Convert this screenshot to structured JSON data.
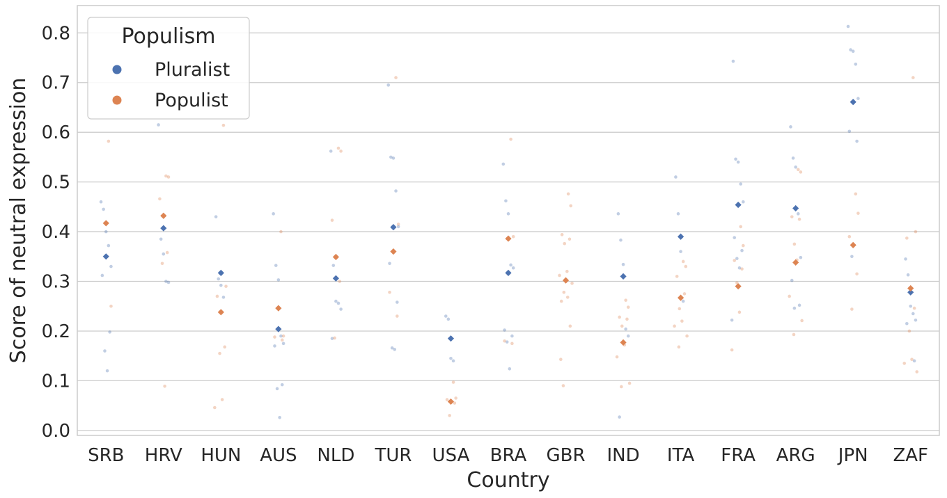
{
  "chart_data": {
    "type": "scatter",
    "subtype": "strip-with-means",
    "xlabel": "Country",
    "ylabel": "Score of neutral expression",
    "categories": [
      "SRB",
      "HRV",
      "HUN",
      "AUS",
      "NLD",
      "TUR",
      "USA",
      "BRA",
      "GBR",
      "IND",
      "ITA",
      "FRA",
      "ARG",
      "JPN",
      "ZAF"
    ],
    "ylim": [
      -0.01,
      0.855
    ],
    "yticks": [
      0.0,
      0.1,
      0.2,
      0.3,
      0.4,
      0.5,
      0.6,
      0.7,
      0.8
    ],
    "ytick_labels": [
      "0.0",
      "0.1",
      "0.2",
      "0.3",
      "0.4",
      "0.5",
      "0.6",
      "0.7",
      "0.8"
    ],
    "grid": "horizontal",
    "legend": {
      "title": "Populism",
      "placement": "top-left"
    },
    "series": [
      {
        "name": "Pluralist",
        "color": "#4c72b0",
        "means": [
          0.35,
          0.407,
          0.317,
          0.204,
          0.306,
          0.409,
          0.185,
          0.317,
          null,
          0.31,
          0.39,
          0.454,
          0.447,
          0.661,
          0.278
        ],
        "points": [
          [
            0.46,
            0.445,
            0.4,
            0.372,
            0.33,
            0.312,
            0.198,
            0.16,
            0.12
          ],
          [
            0.615,
            0.385,
            0.355,
            0.3,
            0.298
          ],
          [
            0.43,
            0.305,
            0.292,
            0.268
          ],
          [
            0.436,
            0.332,
            0.303,
            0.19,
            0.175,
            0.17,
            0.092,
            0.084,
            0.026
          ],
          [
            0.562,
            0.332,
            0.26,
            0.256,
            0.244,
            0.185
          ],
          [
            0.695,
            0.55,
            0.548,
            0.482,
            0.41,
            0.336,
            0.258,
            0.166,
            0.163
          ],
          [
            0.23,
            0.224,
            0.145,
            0.14
          ],
          [
            0.536,
            0.462,
            0.436,
            0.333,
            0.327,
            0.202,
            0.19,
            0.178,
            0.124
          ],
          [],
          [
            0.436,
            0.383,
            0.334,
            0.204,
            0.19,
            0.027
          ],
          [
            0.51,
            0.436,
            0.36,
            0.26
          ],
          [
            0.743,
            0.546,
            0.54,
            0.496,
            0.46,
            0.388,
            0.362,
            0.346,
            0.327,
            0.222
          ],
          [
            0.611,
            0.548,
            0.53,
            0.436,
            0.348,
            0.302,
            0.252,
            0.246
          ],
          [
            0.813,
            0.766,
            0.763,
            0.737,
            0.668,
            0.602,
            0.582,
            0.35
          ],
          [
            0.345,
            0.313,
            0.25,
            0.235,
            0.222,
            0.215,
            0.14
          ]
        ]
      },
      {
        "name": "Populist",
        "color": "#dd8452",
        "means": [
          0.417,
          0.432,
          0.238,
          0.246,
          0.349,
          0.36,
          0.058,
          0.386,
          0.302,
          0.177,
          0.267,
          0.29,
          0.338,
          0.373,
          0.286
        ],
        "points": [
          [
            0.582,
            0.25
          ],
          [
            0.512,
            0.51,
            0.466,
            0.358,
            0.336,
            0.089
          ],
          [
            0.614,
            0.29,
            0.27,
            0.168,
            0.155,
            0.062,
            0.046
          ],
          [
            0.4,
            0.19,
            0.188,
            0.182
          ],
          [
            0.568,
            0.562,
            0.423,
            0.3,
            0.186
          ],
          [
            0.71,
            0.415,
            0.278,
            0.23
          ],
          [
            0.097,
            0.065,
            0.062,
            0.055,
            0.03
          ],
          [
            0.586,
            0.39,
            0.18,
            0.175
          ],
          [
            0.476,
            0.452,
            0.394,
            0.385,
            0.376,
            0.32,
            0.312,
            0.296,
            0.278,
            0.268,
            0.26,
            0.21,
            0.143,
            0.09
          ],
          [
            0.262,
            0.248,
            0.228,
            0.224,
            0.21,
            0.172,
            0.148,
            0.095,
            0.088
          ],
          [
            0.34,
            0.33,
            0.31,
            0.275,
            0.245,
            0.22,
            0.21,
            0.19,
            0.168
          ],
          [
            0.41,
            0.372,
            0.342,
            0.325,
            0.297,
            0.238,
            0.162
          ],
          [
            0.525,
            0.52,
            0.43,
            0.425,
            0.375,
            0.343,
            0.27,
            0.221,
            0.193
          ],
          [
            0.476,
            0.437,
            0.39,
            0.315,
            0.244
          ],
          [
            0.71,
            0.4,
            0.387,
            0.246,
            0.2,
            0.143,
            0.135,
            0.118
          ]
        ]
      }
    ]
  }
}
